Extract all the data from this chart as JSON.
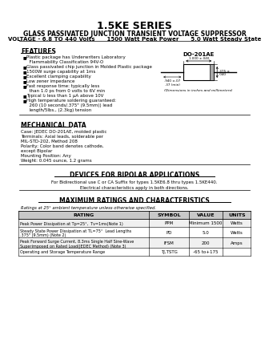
{
  "title": "1.5KE SERIES",
  "subtitle1": "GLASS PASSIVATED JUNCTION TRANSIENT VOLTAGE SUPPRESSOR",
  "subtitle2": "VOLTAGE - 6.8 TO 440 Volts      1500 Watt Peak Power      5.0 Watt Steady State",
  "features_title": "FEATURES",
  "features": [
    "Plastic package has Underwriters Laboratory\n  Flammability Classification 94V-O",
    "Glass passivated chip junction in Molded Plastic package",
    "1500W surge capability at 1ms",
    "Excellent clamping capability",
    "Low zener impedance",
    "Fast response time: typically less\n  than 1.0 ps from 0 volts to 6V min",
    "Typical I₂ less than 1 µA above 10V",
    "High temperature soldering guaranteed:\n  260 (10 seconds/.375\" (9.5mm)) lead\n  length/5lbs., (2.3kg) tension"
  ],
  "mech_title": "MECHANICAL DATA",
  "mech_data": [
    "Case: JEDEC DO-201AE, molded plastic",
    "Terminals: Axial leads, solderable per",
    "MIL-STD-202, Method 208",
    "Polarity: Color band denotes cathode,",
    "except Bipolar",
    "Mounting Position: Any",
    "Weight: 0.045 ounce, 1.2 grams"
  ],
  "bipolar_title": "DEVICES FOR BIPOLAR APPLICATIONS",
  "bipolar_text1": "For Bidirectional use C or CA Suffix for types 1.5KE6.8 thru types 1.5KE440.",
  "bipolar_text2": "Electrical characteristics apply in both directions.",
  "ratings_title": "MAXIMUM RATINGS AND CHARACTERISTICS",
  "ratings_note": "Ratings at 25° ambient temperature unless otherwise specified.",
  "table_headers": [
    "RATING",
    "SYMBOL",
    "VALUE",
    "UNITS"
  ],
  "table_rows": [
    [
      "Peak Power Dissipation at Tp=25°,  Tv=1ms(Note 1)",
      "PPM",
      "Minimum 1500",
      "Watts"
    ],
    [
      "Steady State Power Dissipation at TL=75°  Lead Lengths\n.375\" (9.5mm) (Note 2)",
      "PD",
      "5.0",
      "Watts"
    ],
    [
      "Peak Forward Surge Current, 8.3ms Single Half Sine-Wave\nSuperimposed on Rated Load(JEDEC Method) (Note 3)",
      "IFSM",
      "200",
      "Amps"
    ],
    [
      "Operating and Storage Temperature Range",
      "TJ,TSTG",
      "-65 to+175",
      ""
    ]
  ],
  "pkg_label": "DO-201AE",
  "bg_color": "#ffffff",
  "text_color": "#000000",
  "table_header_bg": "#c8c8c8"
}
